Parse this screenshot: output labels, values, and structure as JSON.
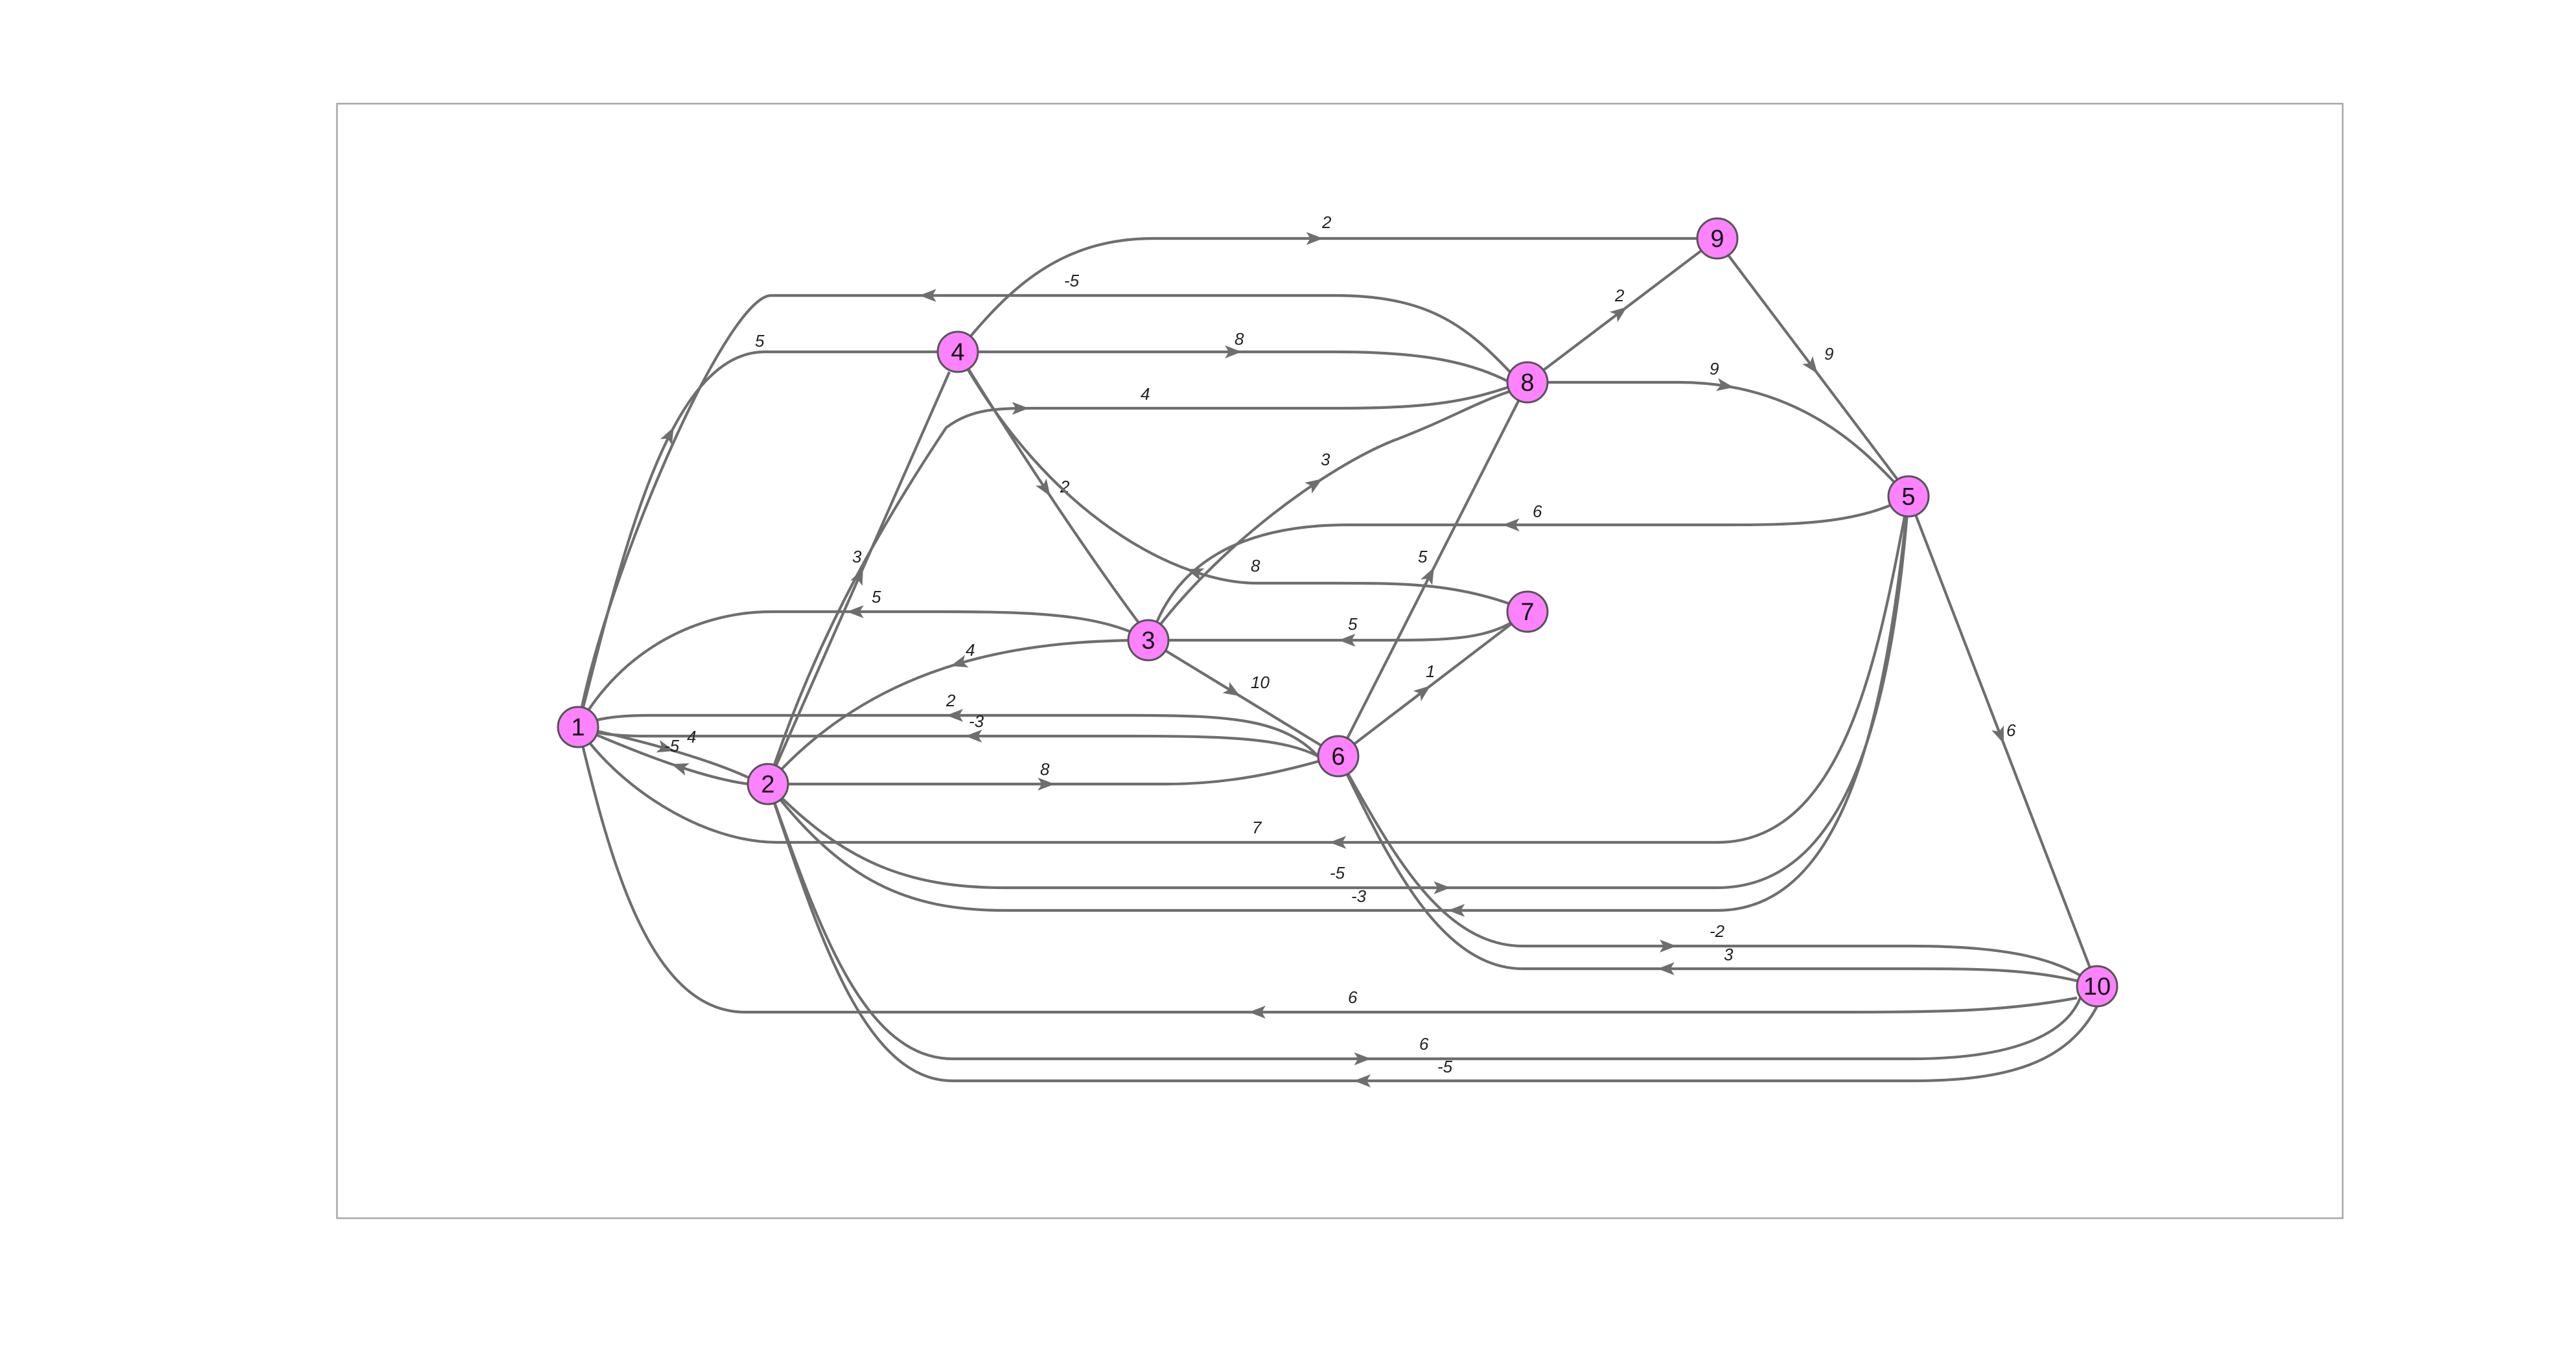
{
  "graph": {
    "nodes": [
      {
        "id": "1",
        "label": "1"
      },
      {
        "id": "2",
        "label": "2"
      },
      {
        "id": "3",
        "label": "3"
      },
      {
        "id": "4",
        "label": "4"
      },
      {
        "id": "5",
        "label": "5"
      },
      {
        "id": "6",
        "label": "6"
      },
      {
        "id": "7",
        "label": "7"
      },
      {
        "id": "8",
        "label": "8"
      },
      {
        "id": "9",
        "label": "9"
      },
      {
        "id": "10",
        "label": "10"
      }
    ],
    "edges": [
      {
        "from": "4",
        "to": "9",
        "weight": "2"
      },
      {
        "from": "8",
        "to": "1",
        "weight": "-5"
      },
      {
        "from": "1",
        "to": "4",
        "weight": "5"
      },
      {
        "from": "4",
        "to": "8",
        "weight": "8"
      },
      {
        "from": "2",
        "to": "8",
        "weight": "4"
      },
      {
        "from": "8",
        "to": "9",
        "weight": "2"
      },
      {
        "from": "8",
        "to": "5",
        "weight": "9"
      },
      {
        "from": "9",
        "to": "5",
        "weight": "9"
      },
      {
        "from": "4",
        "to": "3",
        "weight": "2"
      },
      {
        "from": "3",
        "to": "8",
        "weight": "3"
      },
      {
        "from": "5",
        "to": "3",
        "weight": "6"
      },
      {
        "from": "6",
        "to": "8",
        "weight": "5"
      },
      {
        "from": "7",
        "to": "4",
        "weight": "8"
      },
      {
        "from": "2",
        "to": "4",
        "weight": "3"
      },
      {
        "from": "3",
        "to": "1",
        "weight": "5"
      },
      {
        "from": "7",
        "to": "3",
        "weight": "5"
      },
      {
        "from": "3",
        "to": "2",
        "weight": "4"
      },
      {
        "from": "3",
        "to": "6",
        "weight": "10"
      },
      {
        "from": "6",
        "to": "7",
        "weight": "1"
      },
      {
        "from": "6",
        "to": "1",
        "weight": "2"
      },
      {
        "from": "6",
        "to": "1",
        "weight": "-3"
      },
      {
        "from": "1",
        "to": "2",
        "weight": "4"
      },
      {
        "from": "2",
        "to": "1",
        "weight": "-5"
      },
      {
        "from": "2",
        "to": "6",
        "weight": "8"
      },
      {
        "from": "5",
        "to": "1",
        "weight": "7"
      },
      {
        "from": "2",
        "to": "5",
        "weight": "-5"
      },
      {
        "from": "5",
        "to": "2",
        "weight": "-3"
      },
      {
        "from": "6",
        "to": "10",
        "weight": "-2"
      },
      {
        "from": "10",
        "to": "6",
        "weight": "3"
      },
      {
        "from": "5",
        "to": "10",
        "weight": "6"
      },
      {
        "from": "10",
        "to": "1",
        "weight": "6"
      },
      {
        "from": "2",
        "to": "10",
        "weight": "6"
      },
      {
        "from": "10",
        "to": "2",
        "weight": "-5"
      }
    ]
  }
}
